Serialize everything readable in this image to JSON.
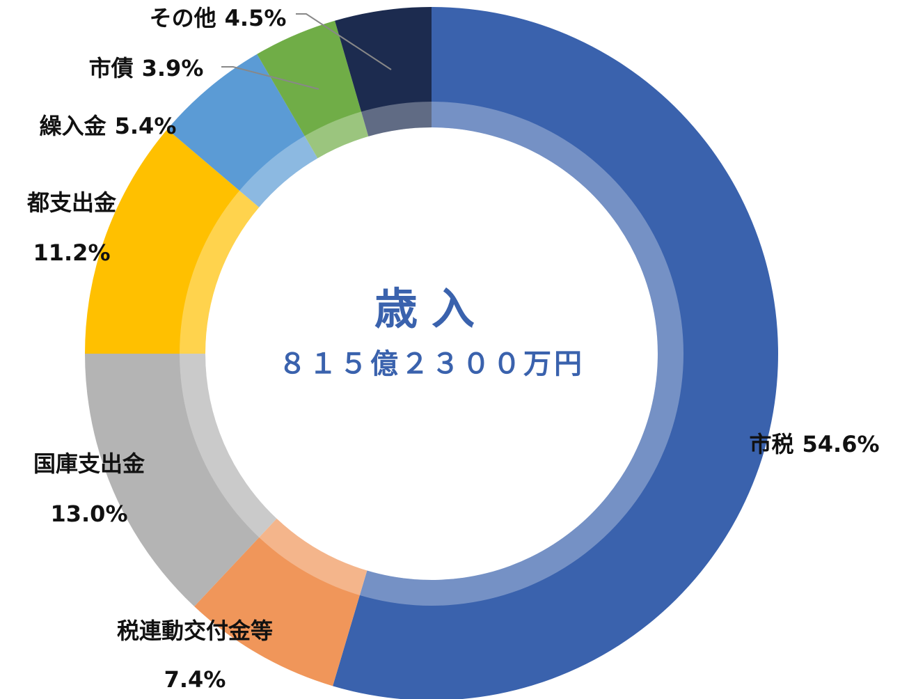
{
  "chart_data": {
    "type": "donut",
    "center_title": "歳入",
    "center_subtitle": "８１５億２３００万円",
    "categories": [
      "市税",
      "税連動交付金等",
      "国庫支出金",
      "都支出金",
      "繰入金",
      "市債",
      "その他"
    ],
    "values": [
      54.6,
      7.4,
      13.0,
      11.2,
      5.4,
      3.9,
      4.5
    ],
    "value_labels": [
      "54.6%",
      "7.4%",
      "13.0%",
      "11.2%",
      "5.4%",
      "3.9%",
      "4.5%"
    ],
    "colors": [
      "#3a62ad",
      "#f0965a",
      "#b4b4b4",
      "#ffc000",
      "#5b9bd5",
      "#70ad47",
      "#1c2b4f"
    ]
  }
}
